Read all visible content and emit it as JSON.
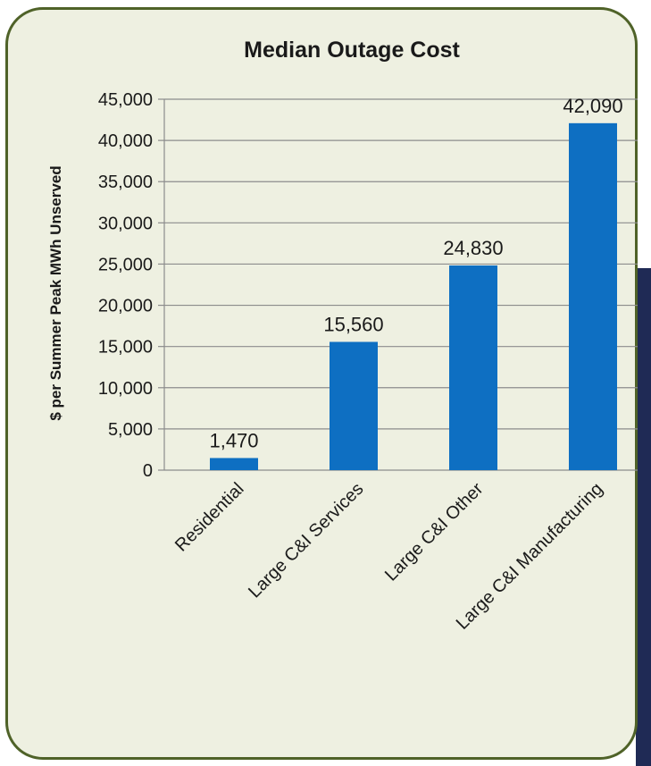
{
  "chart_data": {
    "type": "bar",
    "title": "Median Outage Cost",
    "xlabel": "",
    "ylabel": "$ per Summer Peak MWh Unserved",
    "categories": [
      "Residential",
      "Large C&I Services",
      "Large C&I Other",
      "Large C&I Manufacturing"
    ],
    "values": [
      1470,
      15560,
      24830,
      42090
    ],
    "data_labels": [
      "1,470",
      "15,560",
      "24,830",
      "42,090"
    ],
    "ylim": [
      0,
      45000
    ],
    "yticks": [
      0,
      5000,
      10000,
      15000,
      20000,
      25000,
      30000,
      35000,
      40000,
      45000
    ],
    "ytick_labels": [
      "0",
      "5,000",
      "10,000",
      "15,000",
      "20,000",
      "25,000",
      "30,000",
      "35,000",
      "40,000",
      "45,000"
    ],
    "grid": true,
    "legend": "none",
    "colors": {
      "bar": "#0e6fc2",
      "gridline": "#8c8c8c",
      "frame_border": "#4f6228",
      "frame_fill": "#eef0e1"
    }
  }
}
